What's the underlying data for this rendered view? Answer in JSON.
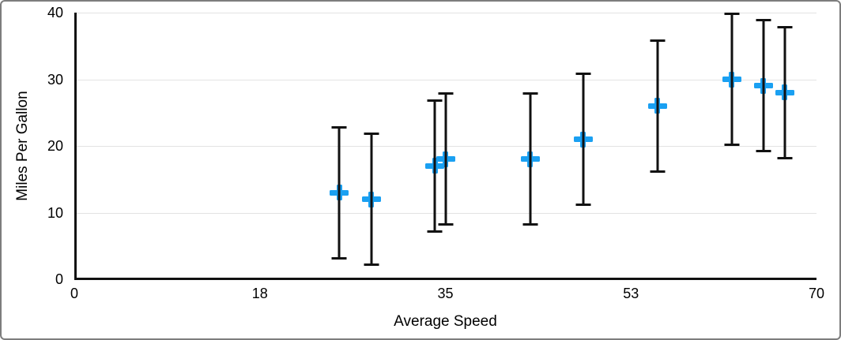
{
  "colors": {
    "marker": "#1aa0f2",
    "error_bar": "#111111",
    "axis_line": "#111111",
    "gridline": "#e3e3e3",
    "frame_border": "#7d7d7d",
    "text": "#000000"
  },
  "chart_data": {
    "type": "scatter",
    "title": "",
    "xlabel": "Average Speed",
    "ylabel": "Miles Per Gallon",
    "xlim": [
      0,
      70
    ],
    "ylim": [
      0,
      40
    ],
    "x_tick_labels": [
      "0",
      "18",
      "35",
      "53",
      "70"
    ],
    "x_tick_values": [
      0,
      17.5,
      35,
      52.5,
      70
    ],
    "y_tick_labels": [
      "0",
      "10",
      "20",
      "30",
      "40"
    ],
    "y_tick_values": [
      0,
      10,
      20,
      30,
      40
    ],
    "gridlines_y": [
      10,
      20,
      30,
      40
    ],
    "grid": "horizontal-only",
    "legend": "none",
    "marker": {
      "shape": "plus",
      "color": "#1aa0f2"
    },
    "error_bars": {
      "axis": "y",
      "type": "fixed",
      "value": 10,
      "color": "#111111"
    },
    "series": [
      {
        "name": "Miles Per Gallon",
        "points": [
          {
            "x": 25,
            "y": 13,
            "err": 10
          },
          {
            "x": 28,
            "y": 12,
            "err": 10
          },
          {
            "x": 34,
            "y": 17,
            "err": 10
          },
          {
            "x": 35,
            "y": 18,
            "err": 10
          },
          {
            "x": 43,
            "y": 18,
            "err": 10
          },
          {
            "x": 48,
            "y": 21,
            "err": 10
          },
          {
            "x": 55,
            "y": 26,
            "err": 10
          },
          {
            "x": 62,
            "y": 30,
            "err": 10
          },
          {
            "x": 65,
            "y": 29,
            "err": 10
          },
          {
            "x": 67,
            "y": 28,
            "err": 10
          }
        ]
      }
    ]
  }
}
